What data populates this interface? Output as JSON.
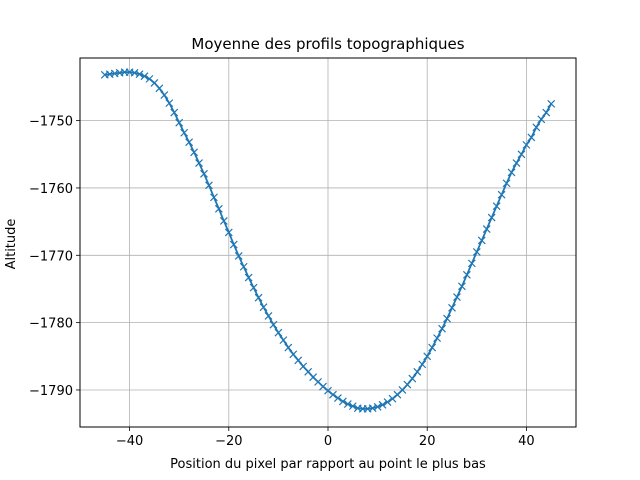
{
  "chart_data": {
    "type": "line",
    "title": "Moyenne des profils topographiques",
    "xlabel": "Position du pixel par rapport au point le plus bas",
    "ylabel": "Altitude",
    "xlim": [
      -50,
      50
    ],
    "ylim": [
      -1795.5,
      -1740.7
    ],
    "grid": true,
    "x_ticks": [
      -40,
      -20,
      0,
      20,
      40
    ],
    "x_tick_labels": [
      "−40",
      "−20",
      "0",
      "20",
      "40"
    ],
    "y_ticks": [
      -1790,
      -1780,
      -1770,
      -1760,
      -1750
    ],
    "y_tick_labels": [
      "−1790",
      "−1780",
      "−1770",
      "−1760",
      "−1750"
    ],
    "line_color": "#1f77b4",
    "marker": "x",
    "series": [
      {
        "x": [
          -45,
          -44,
          -43,
          -42,
          -41,
          -40,
          -39,
          -38,
          -37,
          -36,
          -35,
          -34,
          -33,
          -32,
          -31,
          -30,
          -29,
          -28,
          -27,
          -26,
          -25,
          -24,
          -23,
          -22,
          -21,
          -20,
          -19,
          -18,
          -17,
          -16,
          -15,
          -14,
          -13,
          -12,
          -11,
          -10,
          -9,
          -8,
          -7,
          -6,
          -5,
          -4,
          -3,
          -2,
          -1,
          0,
          1,
          2,
          3,
          4,
          5,
          6,
          7,
          8,
          9,
          10,
          11,
          12,
          13,
          14,
          15,
          16,
          17,
          18,
          19,
          20,
          21,
          22,
          23,
          24,
          25,
          26,
          27,
          28,
          29,
          30,
          31,
          32,
          33,
          34,
          35,
          36,
          37,
          38,
          39,
          40,
          41,
          42,
          43,
          44,
          45
        ],
        "y": [
          -1743.2,
          -1743.1,
          -1743.0,
          -1742.9,
          -1742.8,
          -1742.8,
          -1742.9,
          -1743.1,
          -1743.4,
          -1743.8,
          -1744.4,
          -1745.2,
          -1746.2,
          -1747.4,
          -1748.8,
          -1750.3,
          -1751.8,
          -1753.2,
          -1754.7,
          -1756.3,
          -1757.9,
          -1759.6,
          -1761.4,
          -1763.1,
          -1764.9,
          -1766.6,
          -1768.4,
          -1770.1,
          -1771.7,
          -1773.3,
          -1774.8,
          -1776.3,
          -1777.7,
          -1779.0,
          -1780.3,
          -1781.5,
          -1782.6,
          -1783.7,
          -1784.7,
          -1785.6,
          -1786.5,
          -1787.3,
          -1788.1,
          -1788.8,
          -1789.5,
          -1790.1,
          -1790.7,
          -1791.2,
          -1791.7,
          -1792.1,
          -1792.4,
          -1792.7,
          -1792.8,
          -1792.8,
          -1792.7,
          -1792.5,
          -1792.2,
          -1791.8,
          -1791.3,
          -1790.7,
          -1790.0,
          -1789.2,
          -1788.3,
          -1787.3,
          -1786.2,
          -1785.0,
          -1783.7,
          -1782.3,
          -1780.9,
          -1779.4,
          -1777.8,
          -1776.2,
          -1774.6,
          -1772.9,
          -1771.2,
          -1769.5,
          -1767.8,
          -1766.1,
          -1764.4,
          -1762.7,
          -1761.0,
          -1759.3,
          -1757.7,
          -1756.3,
          -1755.0,
          -1753.6,
          -1752.5,
          -1751.0,
          -1749.8,
          -1748.8,
          -1747.5
        ]
      }
    ]
  }
}
